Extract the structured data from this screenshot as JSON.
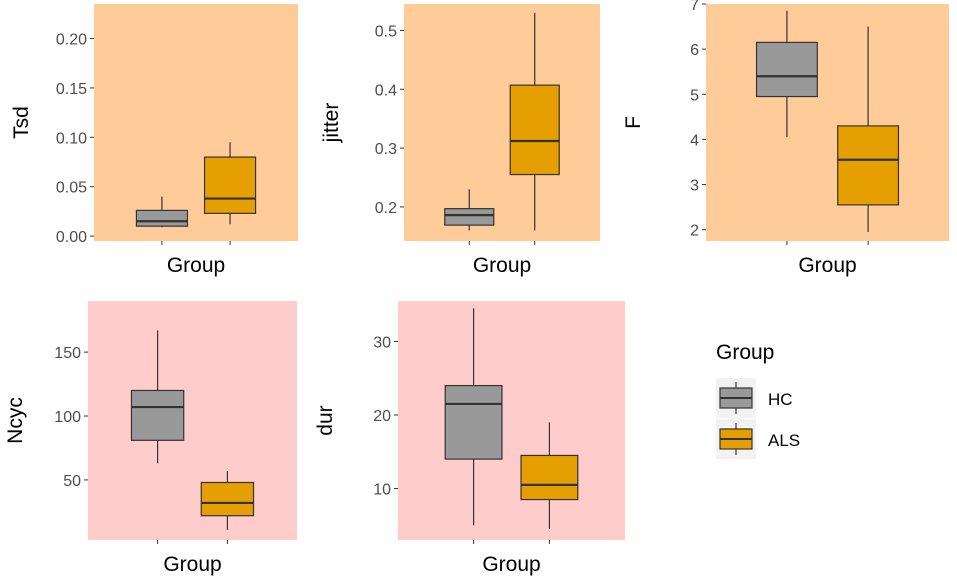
{
  "figure_xlabel": "Group",
  "colors": {
    "HC": "#999999",
    "ALS": "#E69F00",
    "panel_row1": "#FFCC99",
    "panel_row2": "#FFCCCC",
    "axis_text": "#4d4d4d"
  },
  "legend": {
    "title": "Group",
    "entries": [
      {
        "label": "HC",
        "color": "#999999"
      },
      {
        "label": "ALS",
        "color": "#E69F00"
      }
    ]
  },
  "chart_data": [
    {
      "type": "boxplot",
      "ylabel": "Tsd",
      "xlabel": "Group",
      "background": "#FFCC99",
      "ylim": [
        -0.005,
        0.235
      ],
      "yticks": [
        0.0,
        0.05,
        0.1,
        0.15,
        0.2
      ],
      "ytick_labels": [
        "0.00",
        "0.05",
        "0.10",
        "0.15",
        "0.20"
      ],
      "series": [
        {
          "name": "HC",
          "min": 0.009,
          "q1": 0.01,
          "median": 0.015,
          "q3": 0.026,
          "max": 0.04
        },
        {
          "name": "ALS",
          "min": 0.012,
          "q1": 0.023,
          "median": 0.038,
          "q3": 0.08,
          "max": 0.095
        }
      ]
    },
    {
      "type": "boxplot",
      "ylabel": "jitter",
      "xlabel": "Group",
      "background": "#FFCC99",
      "ylim": [
        0.142,
        0.545
      ],
      "yticks": [
        0.2,
        0.3,
        0.4,
        0.5
      ],
      "ytick_labels": [
        "0.2",
        "0.3",
        "0.4",
        "0.5"
      ],
      "series": [
        {
          "name": "HC",
          "min": 0.16,
          "q1": 0.169,
          "median": 0.186,
          "q3": 0.197,
          "max": 0.23
        },
        {
          "name": "ALS",
          "min": 0.16,
          "q1": 0.255,
          "median": 0.312,
          "q3": 0.407,
          "max": 0.53
        }
      ]
    },
    {
      "type": "boxplot",
      "ylabel": "F",
      "xlabel": "Group",
      "background": "#FFCC99",
      "ylim": [
        1.75,
        7.0
      ],
      "yticks": [
        2,
        3,
        4,
        5,
        6,
        7
      ],
      "ytick_labels": [
        "2",
        "3",
        "4",
        "5",
        "6",
        "7"
      ],
      "series": [
        {
          "name": "HC",
          "min": 4.05,
          "q1": 4.95,
          "median": 5.4,
          "q3": 6.15,
          "max": 6.85
        },
        {
          "name": "ALS",
          "min": 1.95,
          "q1": 2.55,
          "median": 3.55,
          "q3": 4.3,
          "max": 6.5
        }
      ]
    },
    {
      "type": "boxplot",
      "ylabel": "Ncyc",
      "xlabel": "Group",
      "background": "#FFCCCC",
      "ylim": [
        3,
        190
      ],
      "yticks": [
        50,
        100,
        150
      ],
      "ytick_labels": [
        "50",
        "100",
        "150"
      ],
      "series": [
        {
          "name": "HC",
          "min": 63,
          "q1": 81,
          "median": 107,
          "q3": 120,
          "max": 167
        },
        {
          "name": "ALS",
          "min": 11,
          "q1": 22,
          "median": 32,
          "q3": 48,
          "max": 57
        }
      ]
    },
    {
      "type": "boxplot",
      "ylabel": "dur",
      "xlabel": "Group",
      "background": "#FFCCCC",
      "ylim": [
        3,
        35.5
      ],
      "yticks": [
        10,
        20,
        30
      ],
      "ytick_labels": [
        "10",
        "20",
        "30"
      ],
      "series": [
        {
          "name": "HC",
          "min": 5.0,
          "q1": 14.0,
          "median": 21.5,
          "q3": 24.0,
          "max": 34.5
        },
        {
          "name": "ALS",
          "min": 4.5,
          "q1": 8.5,
          "median": 10.5,
          "q3": 14.5,
          "max": 19.0
        }
      ]
    }
  ]
}
